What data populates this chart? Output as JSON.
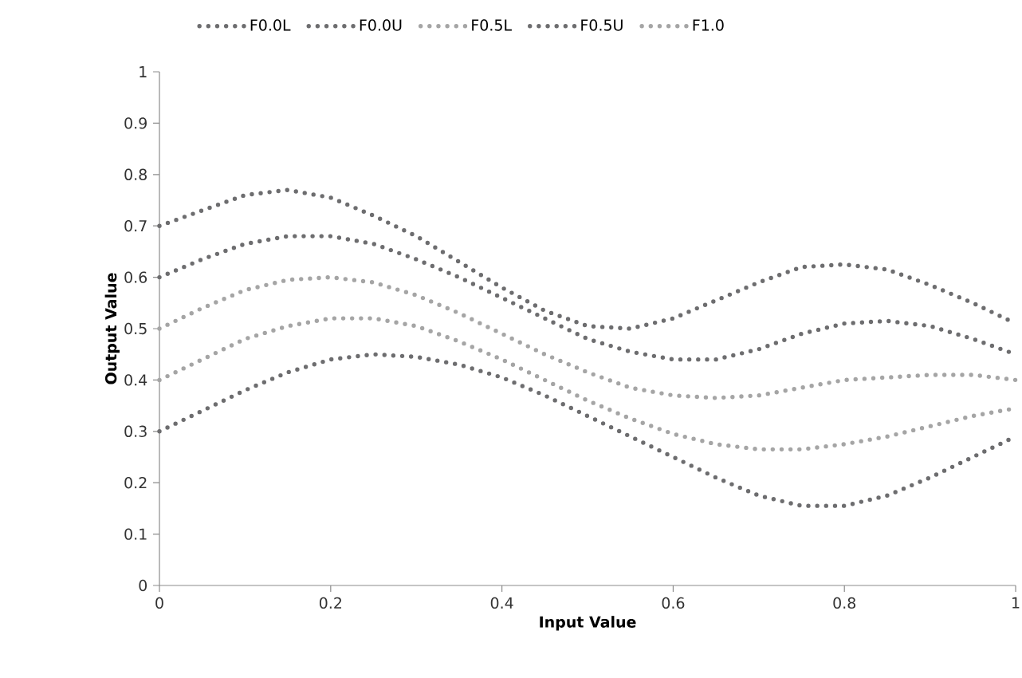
{
  "chart_data": {
    "type": "line",
    "xlabel": "Input Value",
    "ylabel": "Output Value",
    "x": [
      0,
      0.05,
      0.1,
      0.15,
      0.2,
      0.25,
      0.3,
      0.35,
      0.4,
      0.45,
      0.5,
      0.55,
      0.6,
      0.65,
      0.7,
      0.75,
      0.8,
      0.85,
      0.9,
      0.95,
      1
    ],
    "series": [
      {
        "name": "F0.0L",
        "color": "#6d6d6f",
        "values": [
          0.3,
          0.34,
          0.38,
          0.415,
          0.44,
          0.45,
          0.445,
          0.43,
          0.405,
          0.37,
          0.33,
          0.29,
          0.25,
          0.21,
          0.175,
          0.155,
          0.155,
          0.175,
          0.21,
          0.25,
          0.29
        ]
      },
      {
        "name": "F0.0U",
        "color": "#6d6d6f",
        "values": [
          0.7,
          0.73,
          0.76,
          0.77,
          0.755,
          0.72,
          0.68,
          0.63,
          0.58,
          0.535,
          0.505,
          0.5,
          0.52,
          0.555,
          0.59,
          0.62,
          0.625,
          0.615,
          0.585,
          0.55,
          0.51
        ]
      },
      {
        "name": "F0.5L",
        "color": "#a5a5a5",
        "values": [
          0.4,
          0.44,
          0.48,
          0.505,
          0.52,
          0.52,
          0.505,
          0.475,
          0.44,
          0.4,
          0.36,
          0.325,
          0.295,
          0.275,
          0.265,
          0.265,
          0.275,
          0.29,
          0.31,
          0.33,
          0.345
        ]
      },
      {
        "name": "F0.5U",
        "color": "#6d6d6f",
        "values": [
          0.6,
          0.635,
          0.665,
          0.68,
          0.68,
          0.665,
          0.635,
          0.6,
          0.56,
          0.52,
          0.48,
          0.455,
          0.44,
          0.44,
          0.46,
          0.49,
          0.51,
          0.515,
          0.505,
          0.48,
          0.45
        ]
      },
      {
        "name": "F1.0",
        "color": "#a5a5a5",
        "values": [
          0.5,
          0.54,
          0.575,
          0.595,
          0.6,
          0.59,
          0.565,
          0.53,
          0.49,
          0.45,
          0.415,
          0.385,
          0.37,
          0.365,
          0.37,
          0.385,
          0.4,
          0.405,
          0.41,
          0.41,
          0.4
        ]
      }
    ],
    "xlim": [
      0,
      1
    ],
    "ylim": [
      0,
      1
    ],
    "xticks": [
      0,
      0.2,
      0.4,
      0.6,
      0.8,
      1
    ],
    "yticks": [
      0,
      0.1,
      0.2,
      0.3,
      0.4,
      0.5,
      0.6,
      0.7,
      0.8,
      0.9,
      1
    ],
    "grid": false,
    "legend": "top",
    "marker": "none",
    "line_style": "dotted"
  }
}
